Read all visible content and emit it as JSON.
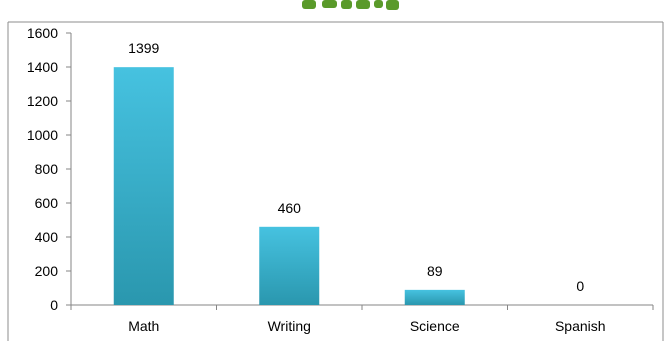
{
  "chart_data": {
    "type": "bar",
    "title": "",
    "xlabel": "",
    "ylabel": "",
    "categories": [
      "Math",
      "Writing",
      "Science",
      "Spanish"
    ],
    "values": [
      1399,
      460,
      89,
      0
    ],
    "data_labels": [
      "1399",
      "460",
      "89",
      "0"
    ],
    "ylim": [
      0,
      1600
    ],
    "yticks": [
      0,
      200,
      400,
      600,
      800,
      1000,
      1200,
      1400,
      1600
    ],
    "ytick_labels": [
      "0",
      "200",
      "400",
      "600",
      "800",
      "1000",
      "1200",
      "1400",
      "1600"
    ],
    "grid": false,
    "legend": "none",
    "colors": {
      "bar_top": "#46c2e0",
      "bar_bottom": "#2a97ae",
      "axis": "#868686",
      "frame": "#8c8c8c",
      "text": "#000000",
      "title_fragment": "#5a9a2a"
    }
  }
}
